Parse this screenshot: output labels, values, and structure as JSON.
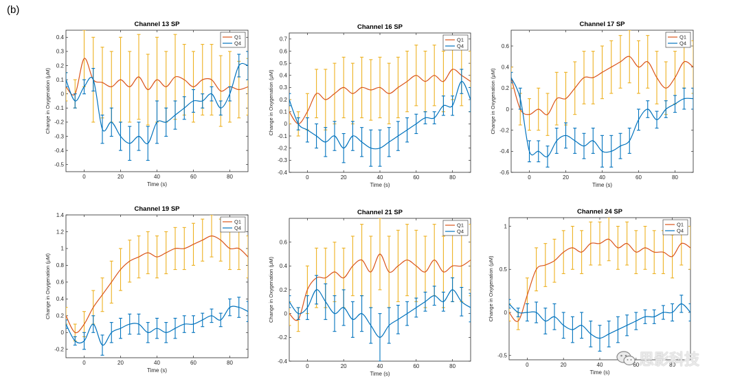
{
  "panel_label": "(b)",
  "watermark": {
    "text": "思影科技",
    "icon": "wechat-icon"
  },
  "colors": {
    "Q1": "#EDB120",
    "Q4": "#0072BD",
    "Q1_line": "#D95319"
  },
  "chart_data": [
    {
      "type": "line",
      "title": "Channel 13 SP",
      "xlabel": "Time (s)",
      "ylabel": "Change in Oxygenation (μM)",
      "xlim": [
        -10,
        90
      ],
      "ylim": [
        -0.55,
        0.45
      ],
      "xticks": [
        0,
        20,
        40,
        60,
        80
      ],
      "yticks": [
        -0.5,
        -0.4,
        -0.3,
        -0.2,
        -0.1,
        0,
        0.1,
        0.2,
        0.3,
        0.4
      ],
      "legend": "top-right",
      "x": [
        -10,
        -5,
        0,
        5,
        10,
        15,
        20,
        25,
        30,
        35,
        40,
        45,
        50,
        55,
        60,
        65,
        70,
        75,
        80,
        85,
        90
      ],
      "series": [
        {
          "name": "Q1",
          "values": [
            0.05,
            0.0,
            0.25,
            0.1,
            0.08,
            0.05,
            0.1,
            0.05,
            0.12,
            0.03,
            0.1,
            0.05,
            0.12,
            0.1,
            0.05,
            0.1,
            0.1,
            0.02,
            0.05,
            0.03,
            0.05
          ],
          "err": [
            0.1,
            0.1,
            0.2,
            0.3,
            0.25,
            0.25,
            0.3,
            0.25,
            0.3,
            0.25,
            0.3,
            0.25,
            0.3,
            0.25,
            0.25,
            0.25,
            0.25,
            0.25,
            0.25,
            0.2,
            0.2
          ]
        },
        {
          "name": "Q4",
          "values": [
            0.1,
            -0.05,
            0.05,
            0.1,
            -0.25,
            -0.2,
            -0.3,
            -0.35,
            -0.3,
            -0.35,
            -0.2,
            -0.2,
            -0.15,
            -0.1,
            -0.05,
            -0.05,
            0.0,
            -0.1,
            0.0,
            0.2,
            0.2
          ],
          "err": [
            0.05,
            0.05,
            0.05,
            0.08,
            0.1,
            0.1,
            0.1,
            0.12,
            0.1,
            0.12,
            0.15,
            0.1,
            0.1,
            0.08,
            0.08,
            0.05,
            0.05,
            0.05,
            0.05,
            0.08,
            0.1
          ]
        }
      ]
    },
    {
      "type": "line",
      "title": "Channel 16 SP",
      "xlabel": "Time (s)",
      "ylabel": "Change in Oxygenation (μM)",
      "xlim": [
        -10,
        90
      ],
      "ylim": [
        -0.4,
        0.75
      ],
      "xticks": [
        0,
        20,
        40,
        60,
        80
      ],
      "yticks": [
        -0.4,
        -0.3,
        -0.2,
        -0.1,
        0,
        0.1,
        0.2,
        0.3,
        0.4,
        0.5,
        0.6,
        0.7
      ],
      "legend": "top-right",
      "x": [
        -10,
        -5,
        0,
        5,
        10,
        15,
        20,
        25,
        30,
        35,
        40,
        45,
        50,
        55,
        60,
        65,
        70,
        75,
        80,
        85,
        90
      ],
      "series": [
        {
          "name": "Q1",
          "values": [
            0.1,
            0.0,
            0.1,
            0.25,
            0.2,
            0.25,
            0.3,
            0.25,
            0.3,
            0.28,
            0.3,
            0.25,
            0.3,
            0.35,
            0.4,
            0.35,
            0.4,
            0.35,
            0.45,
            0.4,
            0.35
          ],
          "err": [
            0.1,
            0.1,
            0.15,
            0.2,
            0.25,
            0.25,
            0.25,
            0.25,
            0.25,
            0.25,
            0.25,
            0.25,
            0.25,
            0.25,
            0.25,
            0.25,
            0.25,
            0.25,
            0.25,
            0.25,
            0.25
          ]
        },
        {
          "name": "Q4",
          "values": [
            0.2,
            0.0,
            -0.05,
            -0.1,
            -0.15,
            -0.1,
            -0.2,
            -0.1,
            -0.15,
            -0.2,
            -0.2,
            -0.15,
            -0.1,
            -0.05,
            0.0,
            0.05,
            0.05,
            0.15,
            0.15,
            0.35,
            0.2
          ],
          "err": [
            0.05,
            0.05,
            0.1,
            0.1,
            0.12,
            0.12,
            0.12,
            0.12,
            0.12,
            0.15,
            0.15,
            0.12,
            0.12,
            0.1,
            0.08,
            0.05,
            0.05,
            0.08,
            0.08,
            0.1,
            0.1
          ]
        }
      ]
    },
    {
      "type": "line",
      "title": "Channel 17 SP",
      "xlabel": "Time (s)",
      "ylabel": "Change in Oxygenation (μM)",
      "xlim": [
        -10,
        90
      ],
      "ylim": [
        -0.6,
        0.75
      ],
      "xticks": [
        0,
        20,
        40,
        60,
        80
      ],
      "yticks": [
        -0.6,
        -0.4,
        -0.2,
        0,
        0.2,
        0.4,
        0.6
      ],
      "legend": "top-right",
      "x": [
        -10,
        -5,
        0,
        5,
        10,
        15,
        20,
        25,
        30,
        35,
        40,
        45,
        50,
        55,
        60,
        65,
        70,
        75,
        80,
        85,
        90
      ],
      "series": [
        {
          "name": "Q1",
          "values": [
            0.3,
            0.0,
            -0.05,
            0.0,
            -0.05,
            0.1,
            0.1,
            0.2,
            0.3,
            0.3,
            0.35,
            0.4,
            0.45,
            0.5,
            0.4,
            0.45,
            0.3,
            0.2,
            0.3,
            0.45,
            0.4
          ],
          "err": [
            0.1,
            0.15,
            0.15,
            0.2,
            0.2,
            0.25,
            0.25,
            0.25,
            0.25,
            0.25,
            0.25,
            0.25,
            0.25,
            0.25,
            0.25,
            0.25,
            0.25,
            0.25,
            0.25,
            0.25,
            0.25
          ]
        },
        {
          "name": "Q4",
          "values": [
            0.3,
            0.1,
            -0.4,
            -0.4,
            -0.45,
            -0.3,
            -0.25,
            -0.3,
            -0.35,
            -0.3,
            -0.4,
            -0.4,
            -0.35,
            -0.3,
            -0.1,
            0.0,
            -0.1,
            0.0,
            0.05,
            0.1,
            0.1
          ],
          "err": [
            0.05,
            0.1,
            0.1,
            0.1,
            0.1,
            0.12,
            0.12,
            0.12,
            0.12,
            0.12,
            0.15,
            0.15,
            0.12,
            0.12,
            0.1,
            0.08,
            0.08,
            0.08,
            0.08,
            0.1,
            0.1
          ]
        }
      ]
    },
    {
      "type": "line",
      "title": "Channel 19 SP",
      "xlabel": "Time (s)",
      "ylabel": "Change in Oxygenation (μM)",
      "xlim": [
        -10,
        90
      ],
      "ylim": [
        -0.3,
        1.4
      ],
      "xticks": [
        0,
        20,
        40,
        60,
        80
      ],
      "yticks": [
        -0.2,
        0,
        0.2,
        0.4,
        0.6,
        0.8,
        1,
        1.2,
        1.4
      ],
      "legend": "top-right",
      "x": [
        -10,
        -5,
        0,
        5,
        10,
        15,
        20,
        25,
        30,
        35,
        40,
        45,
        50,
        55,
        60,
        65,
        70,
        75,
        80,
        85,
        90
      ],
      "series": [
        {
          "name": "Q1",
          "values": [
            0.2,
            0.0,
            0.1,
            0.3,
            0.45,
            0.6,
            0.75,
            0.85,
            0.9,
            0.95,
            0.9,
            0.95,
            1.0,
            1.0,
            1.05,
            1.1,
            1.15,
            1.1,
            1.0,
            1.0,
            0.9
          ],
          "err": [
            0.1,
            0.1,
            0.15,
            0.2,
            0.2,
            0.25,
            0.25,
            0.25,
            0.25,
            0.25,
            0.25,
            0.25,
            0.25,
            0.25,
            0.25,
            0.25,
            0.25,
            0.25,
            0.25,
            0.25,
            0.25
          ]
        },
        {
          "name": "Q4",
          "values": [
            0.1,
            -0.1,
            -0.1,
            0.1,
            -0.15,
            0.0,
            0.05,
            0.1,
            0.1,
            0.0,
            0.05,
            0.0,
            0.05,
            0.1,
            0.1,
            0.15,
            0.2,
            0.15,
            0.3,
            0.3,
            0.25
          ],
          "err": [
            0.05,
            0.05,
            0.1,
            0.1,
            0.12,
            0.12,
            0.12,
            0.12,
            0.12,
            0.12,
            0.12,
            0.12,
            0.12,
            0.1,
            0.1,
            0.08,
            0.08,
            0.08,
            0.1,
            0.12,
            0.12
          ]
        }
      ]
    },
    {
      "type": "line",
      "title": "Channel 21 SP",
      "xlabel": "Time (s)",
      "ylabel": "Change in Oxygenation (μM)",
      "xlim": [
        -10,
        90
      ],
      "ylim": [
        -0.4,
        0.8
      ],
      "xticks": [
        0,
        20,
        40,
        60,
        80
      ],
      "yticks": [
        -0.4,
        -0.2,
        0,
        0.2,
        0.4,
        0.6
      ],
      "legend": "top-right",
      "x": [
        -10,
        -5,
        0,
        5,
        10,
        15,
        20,
        25,
        30,
        35,
        40,
        45,
        50,
        55,
        60,
        65,
        70,
        75,
        80,
        85,
        90
      ],
      "series": [
        {
          "name": "Q1",
          "values": [
            0.0,
            -0.05,
            0.2,
            0.3,
            0.3,
            0.35,
            0.3,
            0.4,
            0.45,
            0.35,
            0.5,
            0.35,
            0.4,
            0.45,
            0.4,
            0.35,
            0.45,
            0.35,
            0.4,
            0.4,
            0.45
          ],
          "err": [
            0.1,
            0.1,
            0.2,
            0.25,
            0.25,
            0.25,
            0.25,
            0.25,
            0.3,
            0.3,
            0.3,
            0.3,
            0.3,
            0.3,
            0.3,
            0.3,
            0.3,
            0.3,
            0.3,
            0.3,
            0.3
          ]
        },
        {
          "name": "Q4",
          "values": [
            0.1,
            0.0,
            0.05,
            0.2,
            0.1,
            0.0,
            0.05,
            -0.05,
            0.0,
            -0.1,
            -0.2,
            -0.1,
            -0.05,
            0.0,
            0.05,
            0.1,
            0.15,
            0.1,
            0.2,
            0.1,
            0.05
          ],
          "err": [
            0.05,
            0.05,
            0.1,
            0.12,
            0.15,
            0.15,
            0.15,
            0.15,
            0.15,
            0.15,
            0.2,
            0.15,
            0.12,
            0.1,
            0.08,
            0.08,
            0.08,
            0.08,
            0.1,
            0.12,
            0.12
          ]
        }
      ]
    },
    {
      "type": "line",
      "title": "Channel 24 SP",
      "xlabel": "Time (s)",
      "ylabel": "Change in Oxygenation (μM)",
      "xlim": [
        -10,
        90
      ],
      "ylim": [
        -0.55,
        1.1
      ],
      "xticks": [
        0,
        20,
        40,
        60,
        80
      ],
      "yticks": [
        -0.5,
        0,
        0.5,
        1
      ],
      "legend": "top-right",
      "x": [
        -10,
        -5,
        0,
        5,
        10,
        15,
        20,
        25,
        30,
        35,
        40,
        45,
        50,
        55,
        60,
        65,
        70,
        75,
        80,
        85,
        90
      ],
      "series": [
        {
          "name": "Q1",
          "values": [
            0.0,
            -0.1,
            0.2,
            0.5,
            0.55,
            0.6,
            0.7,
            0.75,
            0.7,
            0.8,
            0.8,
            0.85,
            0.75,
            0.8,
            0.7,
            0.75,
            0.7,
            0.7,
            0.65,
            0.8,
            0.75
          ],
          "err": [
            0.1,
            0.1,
            0.2,
            0.25,
            0.25,
            0.25,
            0.25,
            0.25,
            0.25,
            0.25,
            0.25,
            0.25,
            0.25,
            0.25,
            0.25,
            0.25,
            0.25,
            0.25,
            0.25,
            0.25,
            0.25
          ]
        },
        {
          "name": "Q4",
          "values": [
            0.1,
            0.0,
            0.0,
            0.0,
            -0.1,
            -0.05,
            -0.15,
            -0.2,
            -0.15,
            -0.25,
            -0.3,
            -0.25,
            -0.2,
            -0.15,
            -0.1,
            -0.05,
            -0.05,
            0.0,
            0.0,
            0.1,
            0.0
          ],
          "err": [
            0.05,
            0.05,
            0.1,
            0.12,
            0.15,
            0.15,
            0.15,
            0.15,
            0.15,
            0.15,
            0.15,
            0.15,
            0.15,
            0.12,
            0.1,
            0.08,
            0.08,
            0.08,
            0.1,
            0.1,
            0.1
          ]
        }
      ]
    }
  ]
}
